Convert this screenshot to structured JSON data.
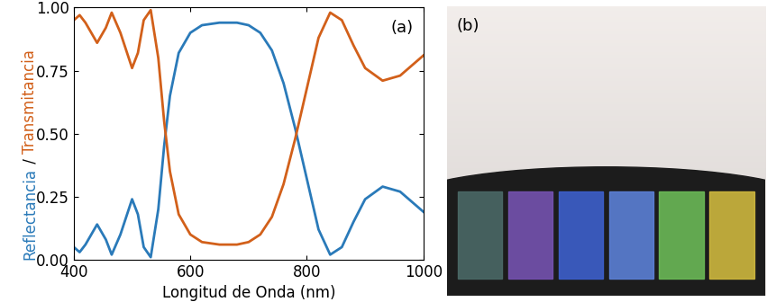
{
  "chart_data": {
    "type": "line",
    "xlabel": "Longitud de Onda (nm)",
    "ylabel": "Reflectancia / Transmitancia",
    "annotations": [
      "(a)"
    ],
    "x": [
      400,
      410,
      420,
      440,
      455,
      465,
      480,
      500,
      510,
      520,
      532,
      545,
      555,
      565,
      580,
      600,
      620,
      650,
      680,
      700,
      720,
      740,
      760,
      780,
      800,
      820,
      840,
      860,
      880,
      900,
      930,
      960,
      1000
    ],
    "series": [
      {
        "name": "Reflectancia",
        "color": "#2a7ab9",
        "values": [
          0.05,
          0.03,
          0.06,
          0.14,
          0.08,
          0.02,
          0.1,
          0.24,
          0.18,
          0.05,
          0.01,
          0.2,
          0.45,
          0.65,
          0.82,
          0.9,
          0.93,
          0.94,
          0.94,
          0.93,
          0.9,
          0.83,
          0.7,
          0.52,
          0.32,
          0.12,
          0.02,
          0.05,
          0.15,
          0.24,
          0.29,
          0.27,
          0.19
        ]
      },
      {
        "name": "Transmitancia",
        "color": "#d2601a",
        "values": [
          0.95,
          0.97,
          0.94,
          0.86,
          0.92,
          0.98,
          0.9,
          0.76,
          0.82,
          0.95,
          0.99,
          0.8,
          0.55,
          0.35,
          0.18,
          0.1,
          0.07,
          0.06,
          0.06,
          0.07,
          0.1,
          0.17,
          0.3,
          0.48,
          0.68,
          0.88,
          0.98,
          0.95,
          0.85,
          0.76,
          0.71,
          0.73,
          0.81
        ]
      }
    ],
    "xlim": [
      400,
      1000
    ],
    "xticks": [
      400,
      600,
      800,
      1000
    ],
    "ylim": [
      0,
      1
    ],
    "yticks": [
      {
        "value": 0,
        "label": "0.00"
      },
      {
        "value": 0.25,
        "label": "0.25"
      },
      {
        "value": 0.5,
        "label": "0.50"
      },
      {
        "value": 0.75,
        "label": "0.75"
      },
      {
        "value": 1,
        "label": "1.00"
      }
    ],
    "grid": false
  },
  "photo_panel": {
    "label": "(b)"
  }
}
